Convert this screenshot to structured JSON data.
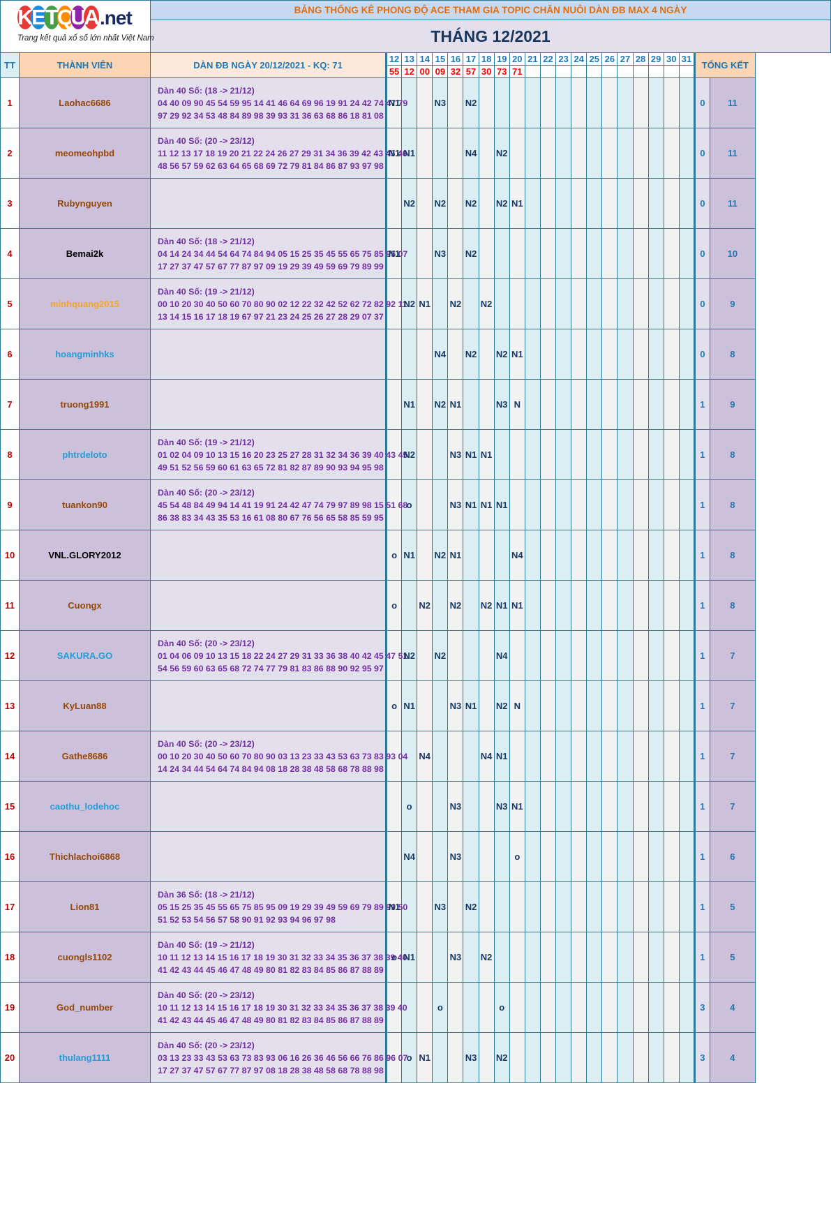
{
  "logo": {
    "letters": [
      "K",
      "E",
      "T",
      "Q",
      "U",
      "A"
    ],
    "letter_colors": [
      "#e53935",
      "#1e88e5",
      "#43a047",
      "#fb8c00",
      "#8e24aa",
      "#e53935"
    ],
    "suffix": ".net",
    "tagline": "Trang kết quả xổ số lớn nhất Việt Nam"
  },
  "header": {
    "title": "BẢNG THỐNG KÊ PHONG ĐỘ ACE THAM GIA TOPIC CHĂN NUÔI DÀN ĐB MAX 4 NGÀY",
    "month": "THÁNG 12/2021"
  },
  "columns": {
    "tt": "TT",
    "member": "THÀNH VIÊN",
    "dan": "DÀN ĐB NGÀY 20/12/2021 - KQ: 71",
    "total": "TỔNG KẾT"
  },
  "days": [
    "12",
    "13",
    "14",
    "15",
    "16",
    "17",
    "18",
    "19",
    "20",
    "21",
    "22",
    "23",
    "24",
    "25",
    "26",
    "27",
    "28",
    "29",
    "30",
    "31"
  ],
  "results": [
    "55",
    "12",
    "00",
    "09",
    "32",
    "57",
    "30",
    "73",
    "71",
    "",
    "",
    "",
    "",
    "",
    "",
    "",
    "",
    "",
    "",
    ""
  ],
  "rows": [
    {
      "tt": "1",
      "name": "Laohac6686",
      "color": "#974706",
      "dan": [
        "Dàn 40 Số: (18 -> 21/12)",
        "04 40 09 90 45 54 59 95 14 41 46 64 69 96 19 91 24 42 74 47 79",
        "97 29 92 34 53 48 84 89 98 39 93 31 36 63 68 86 18 81 08"
      ],
      "marks": [
        "N1",
        "",
        "",
        "N3",
        "",
        "N2",
        "",
        "",
        "",
        "",
        "",
        "",
        "",
        "",
        "",
        "",
        "",
        "",
        "",
        ""
      ],
      "small": "0",
      "total": "11"
    },
    {
      "tt": "2",
      "name": "meomeohpbd",
      "color": "#974706",
      "dan": [
        "Dàn 40 Số: (20 -> 23/12)",
        "11 12 13 17 18 19 20 21 22 24 26 27 29 31 34 36 39 42 43 45 46",
        "48 56 57 59 62 63 64 65 68 69 72 79 81 84 86 87 93 97 98"
      ],
      "marks": [
        "N1",
        "N1",
        "",
        "",
        "",
        "N4",
        "",
        "N2",
        "",
        "",
        "",
        "",
        "",
        "",
        "",
        "",
        "",
        "",
        "",
        ""
      ],
      "small": "0",
      "total": "11"
    },
    {
      "tt": "3",
      "name": "Rubynguyen",
      "color": "#974706",
      "dan": [
        "",
        "",
        ""
      ],
      "marks": [
        "",
        "N2",
        "",
        "N2",
        "",
        "N2",
        "",
        "N2",
        "N1",
        "",
        "",
        "",
        "",
        "",
        "",
        "",
        "",
        "",
        "",
        ""
      ],
      "small": "0",
      "total": "11"
    },
    {
      "tt": "4",
      "name": "Bemai2k",
      "color": "#000000",
      "dan": [
        "Dàn 40 Số: (18 -> 21/12)",
        "04 14 24 34 44 54 64 74 84 94 05 15 25 35 45 55 65 75 85 95 07",
        "17 27 37 47 57 67 77 87 97 09 19 29 39 49 59 69 79 89 99"
      ],
      "marks": [
        "N1",
        "",
        "",
        "N3",
        "",
        "N2",
        "",
        "",
        "",
        "",
        "",
        "",
        "",
        "",
        "",
        "",
        "",
        "",
        "",
        ""
      ],
      "small": "0",
      "total": "10"
    },
    {
      "tt": "5",
      "name": "minhquang2015",
      "color": "#f5a623",
      "dan": [
        "Dàn 40 Số: (19 -> 21/12)",
        "00 10 20 30 40 50 60 70 80 90 02 12 22 32 42 52 62 72 82 92 11",
        "13 14 15 16 17 18 19 67 97 21 23 24 25 26 27 28 29 07 37"
      ],
      "marks": [
        "",
        "N2",
        "N1",
        "",
        "N2",
        "",
        "N2",
        "",
        "",
        "",
        "",
        "",
        "",
        "",
        "",
        "",
        "",
        "",
        "",
        ""
      ],
      "small": "0",
      "total": "9"
    },
    {
      "tt": "6",
      "name": "hoangminhks",
      "color": "#1e9fd8",
      "dan": [
        "",
        "",
        ""
      ],
      "marks": [
        "",
        "",
        "",
        "N4",
        "",
        "N2",
        "",
        "N2",
        "N1",
        "",
        "",
        "",
        "",
        "",
        "",
        "",
        "",
        "",
        "",
        ""
      ],
      "small": "0",
      "total": "8"
    },
    {
      "tt": "7",
      "name": "truong1991",
      "color": "#974706",
      "dan": [
        "",
        "",
        ""
      ],
      "marks": [
        "",
        "N1",
        "",
        "N2",
        "N1",
        "",
        "",
        "N3",
        "N",
        "",
        "",
        "",
        "",
        "",
        "",
        "",
        "",
        "",
        "",
        ""
      ],
      "small": "1",
      "total": "9"
    },
    {
      "tt": "8",
      "name": "phtrdeloto",
      "color": "#1e9fd8",
      "dan": [
        "Dàn 40 Số: (19 -> 21/12)",
        "01 02 04 09 10 13 15 16 20 23 25 27 28 31 32 34 36 39 40 43 45",
        "49 51 52 56 59 60 61 63 65 72 81 82 87 89 90 93 94 95 98"
      ],
      "marks": [
        "",
        "N2",
        "",
        "",
        "N3",
        "N1",
        "N1",
        "",
        "",
        "",
        "",
        "",
        "",
        "",
        "",
        "",
        "",
        "",
        "",
        ""
      ],
      "small": "1",
      "total": "8"
    },
    {
      "tt": "9",
      "name": "tuankon90",
      "color": "#974706",
      "dan": [
        "Dàn 40 Số: (20 -> 23/12)",
        "45 54 48 84 49 94 14 41 19 91 24 42 47 74 79 97 89 98 15 51 68",
        "86 38 83 34 43 35 53 16 61 08 80 67 76 56 65 58 85 59 95"
      ],
      "marks": [
        "",
        "o",
        "",
        "",
        "N3",
        "N1",
        "N1",
        "N1",
        "",
        "",
        "",
        "",
        "",
        "",
        "",
        "",
        "",
        "",
        "",
        ""
      ],
      "small": "1",
      "total": "8"
    },
    {
      "tt": "10",
      "name": "VNL.GLORY2012",
      "color": "#000000",
      "dan": [
        "",
        "",
        ""
      ],
      "marks": [
        "o",
        "N1",
        "",
        "N2",
        "N1",
        "",
        "",
        "",
        "N4",
        "",
        "",
        "",
        "",
        "",
        "",
        "",
        "",
        "",
        "",
        ""
      ],
      "small": "1",
      "total": "8"
    },
    {
      "tt": "11",
      "name": "Cuongx",
      "color": "#974706",
      "dan": [
        "",
        "",
        ""
      ],
      "marks": [
        "o",
        "",
        "N2",
        "",
        "N2",
        "",
        "N2",
        "N1",
        "N1",
        "",
        "",
        "",
        "",
        "",
        "",
        "",
        "",
        "",
        "",
        ""
      ],
      "small": "1",
      "total": "8"
    },
    {
      "tt": "12",
      "name": "SAKURA.GO",
      "color": "#1e9fd8",
      "dan": [
        "Dàn 40 Số: (20 -> 23/12)",
        "01 04 06 09 10 13 15 18 22 24 27 29 31 33 36 38 40 42 45 47 51",
        "54 56 59 60 63 65 68 72 74 77 79 81 83 86 88 90 92 95 97"
      ],
      "marks": [
        "",
        "N2",
        "",
        "N2",
        "",
        "",
        "",
        "N4",
        "",
        "",
        "",
        "",
        "",
        "",
        "",
        "",
        "",
        "",
        "",
        ""
      ],
      "small": "1",
      "total": "7"
    },
    {
      "tt": "13",
      "name": "KyLuan88",
      "color": "#974706",
      "dan": [
        "",
        "",
        ""
      ],
      "marks": [
        "o",
        "N1",
        "",
        "",
        "N3",
        "N1",
        "",
        "N2",
        "N",
        "",
        "",
        "",
        "",
        "",
        "",
        "",
        "",
        "",
        "",
        ""
      ],
      "small": "1",
      "total": "7"
    },
    {
      "tt": "14",
      "name": "Gathe8686",
      "color": "#974706",
      "dan": [
        "Dàn 40 Số: (20 -> 23/12)",
        "00 10 20 30 40 50 60 70 80 90 03 13 23 33 43 53 63 73 83 93 04",
        "14 24 34 44 54 64 74 84 94 08 18 28 38 48 58 68 78 88 98"
      ],
      "marks": [
        "",
        "",
        "N4",
        "",
        "",
        "",
        "N4",
        "N1",
        "",
        "",
        "",
        "",
        "",
        "",
        "",
        "",
        "",
        "",
        "",
        ""
      ],
      "small": "1",
      "total": "7"
    },
    {
      "tt": "15",
      "name": "caothu_lodehoc",
      "color": "#1e9fd8",
      "dan": [
        "",
        "",
        ""
      ],
      "marks": [
        "",
        "o",
        "",
        "",
        "N3",
        "",
        "",
        "N3",
        "N1",
        "",
        "",
        "",
        "",
        "",
        "",
        "",
        "",
        "",
        "",
        ""
      ],
      "small": "1",
      "total": "7"
    },
    {
      "tt": "16",
      "name": "Thichlachoi6868",
      "color": "#974706",
      "dan": [
        "",
        "",
        ""
      ],
      "marks": [
        "",
        "N4",
        "",
        "",
        "N3",
        "",
        "",
        "",
        "o",
        "",
        "",
        "",
        "",
        "",
        "",
        "",
        "",
        "",
        "",
        ""
      ],
      "small": "1",
      "total": "6"
    },
    {
      "tt": "17",
      "name": "Lion81",
      "color": "#974706",
      "dan": [
        "Dàn 36 Số: (18 -> 21/12)",
        "05 15 25 35 45 55 65 75 85 95 09 19 29 39 49 59 69 79 89 99 50",
        "51 52 53 54 56 57 58 90 91 92 93 94 96 97 98"
      ],
      "marks": [
        "N1",
        "",
        "",
        "N3",
        "",
        "N2",
        "",
        "",
        "",
        "",
        "",
        "",
        "",
        "",
        "",
        "",
        "",
        "",
        "",
        ""
      ],
      "small": "1",
      "total": "5"
    },
    {
      "tt": "18",
      "name": "cuongls1102",
      "color": "#974706",
      "dan": [
        "Dàn 40 Số: (19 -> 21/12)",
        "10 11 12 13 14 15 16 17 18 19 30 31 32 33 34 35 36 37 38 39 40",
        "41 42 43 44 45 46 47 48 49 80 81 82 83 84 85 86 87 88 89"
      ],
      "marks": [
        "o",
        "N1",
        "",
        "",
        "N3",
        "",
        "N2",
        "",
        "",
        "",
        "",
        "",
        "",
        "",
        "",
        "",
        "",
        "",
        "",
        ""
      ],
      "small": "1",
      "total": "5"
    },
    {
      "tt": "19",
      "name": "God_number",
      "color": "#974706",
      "dan": [
        "Dàn 40 Số: (20 -> 23/12)",
        "10 11 12 13 14 15 16 17 18 19 30 31 32 33 34 35 36 37 38 39 40",
        "41 42 43 44 45 46 47 48 49 80 81 82 83 84 85 86 87 88 89"
      ],
      "marks": [
        "",
        "",
        "",
        "o",
        "",
        "",
        "",
        "o",
        "",
        "",
        "",
        "",
        "",
        "",
        "",
        "",
        "",
        "",
        "",
        ""
      ],
      "small": "3",
      "total": "4"
    },
    {
      "tt": "20",
      "name": "thulang1111",
      "color": "#1e9fd8",
      "dan": [
        "Dàn 40 Số: (20 -> 23/12)",
        "03 13 23 33 43 53 63 73 83 93 06 16 26 36 46 56 66 76 86 96 07",
        "17 27 37 47 57 67 77 87 97 08 18 28 38 48 58 68 78 88 98"
      ],
      "marks": [
        "",
        "o",
        "N1",
        "",
        "",
        "N3",
        "",
        "N2",
        "",
        "",
        "",
        "",
        "",
        "",
        "",
        "",
        "",
        "",
        "",
        ""
      ],
      "small": "3",
      "total": "4"
    }
  ]
}
